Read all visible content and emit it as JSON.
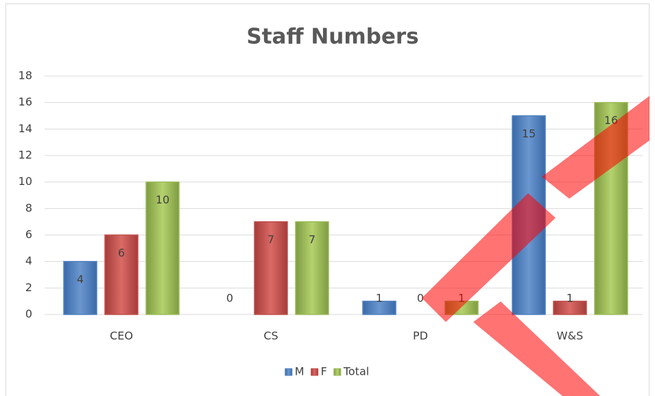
{
  "chart_data": {
    "type": "bar",
    "title": "Staff Numbers",
    "categories": [
      "CEO",
      "CS",
      "PD",
      "W&S"
    ],
    "series": [
      {
        "name": "M",
        "color": "#4f81bd",
        "values": [
          4,
          0,
          1,
          15
        ]
      },
      {
        "name": "F",
        "color": "#c0504d",
        "values": [
          6,
          7,
          0,
          1
        ]
      },
      {
        "name": "Total",
        "color": "#9bbb59",
        "values": [
          10,
          7,
          1,
          16
        ]
      }
    ],
    "ylim": [
      0,
      18
    ],
    "yticks": [
      0,
      2,
      4,
      6,
      8,
      10,
      12,
      14,
      16,
      18
    ],
    "grid": true,
    "legend": "bottom"
  }
}
